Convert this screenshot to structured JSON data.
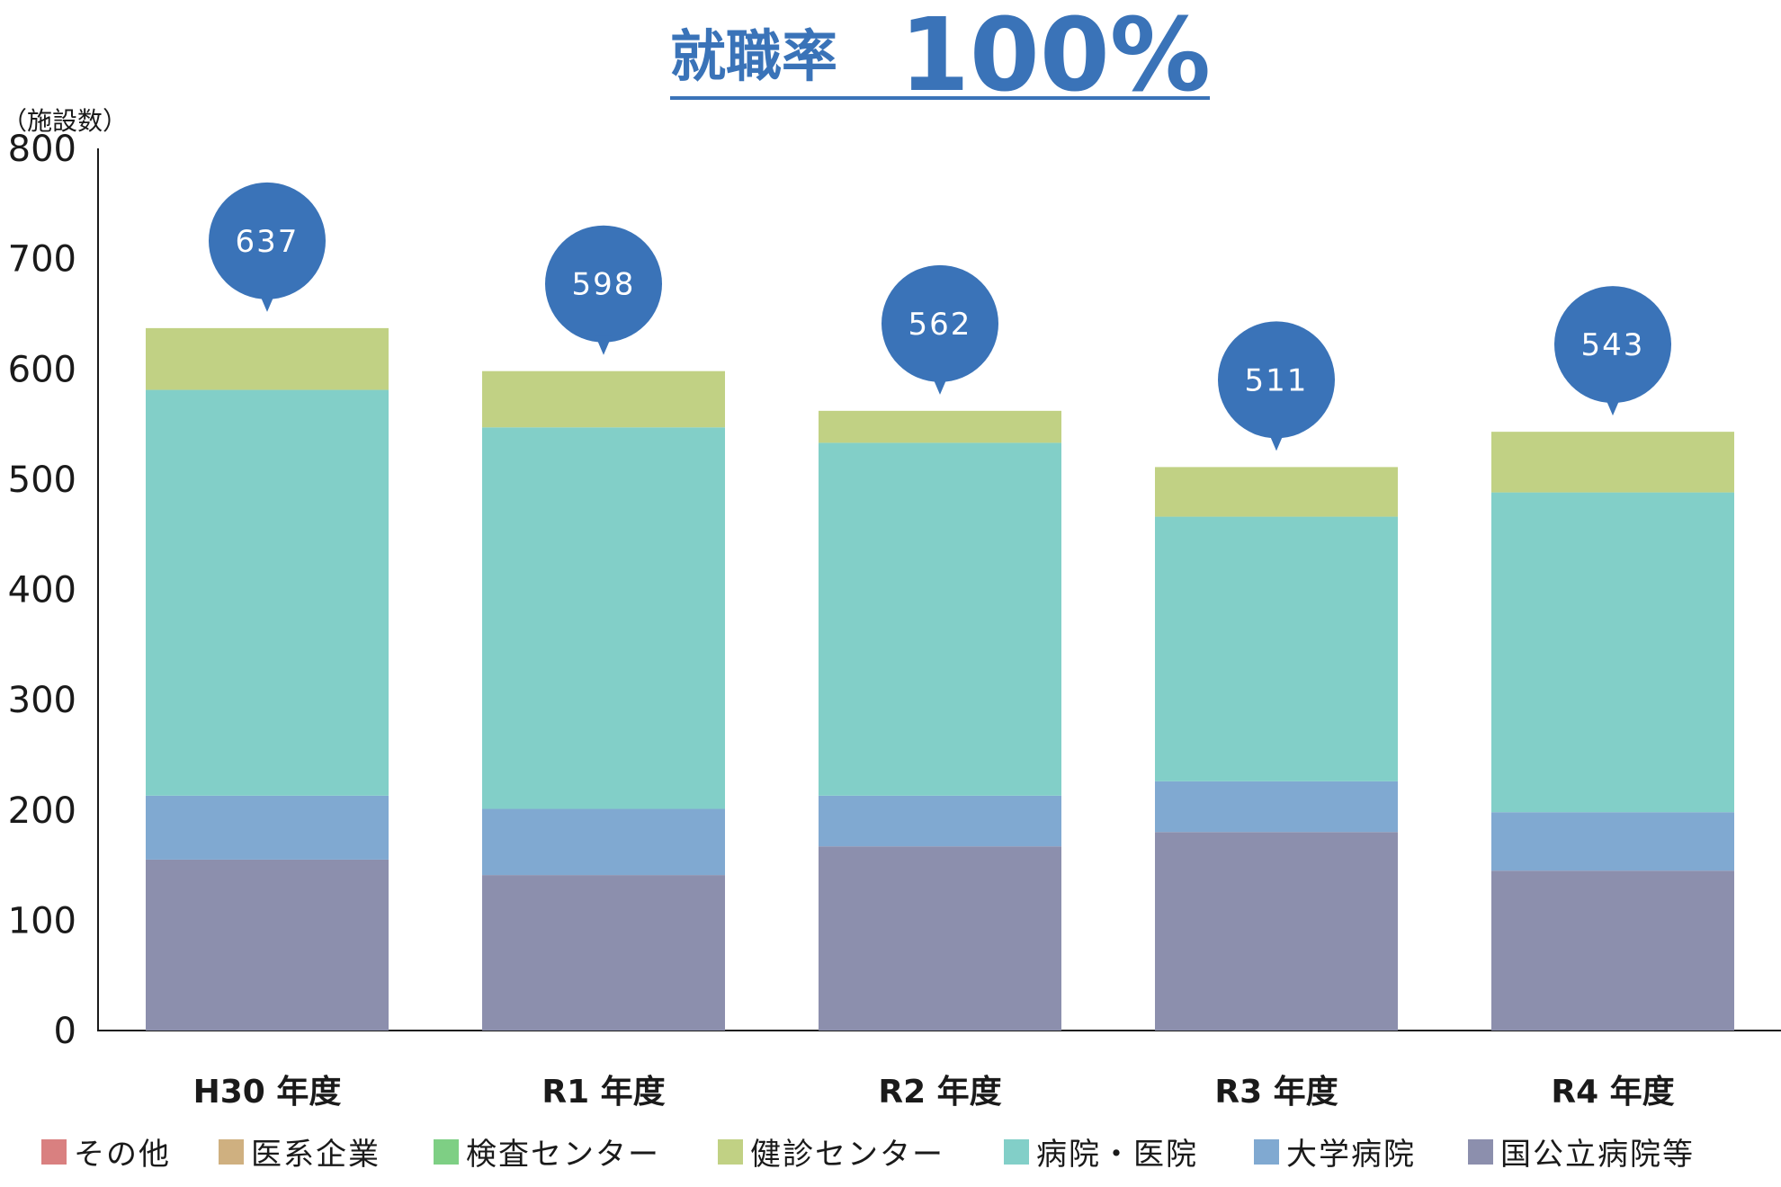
{
  "chart_data": {
    "type": "bar",
    "stacked": true,
    "title": "就職率 100%",
    "title_parts": [
      "就職率",
      "100%"
    ],
    "ylabel": "（施設数）",
    "ylim": [
      0,
      800
    ],
    "yticks": [
      0,
      100,
      200,
      300,
      400,
      500,
      600,
      700,
      800
    ],
    "categories": [
      "H30 年度",
      "R1 年度",
      "R2 年度",
      "R3 年度",
      "R4 年度"
    ],
    "totals": [
      637,
      598,
      562,
      511,
      543
    ],
    "series": [
      {
        "name": "その他",
        "color": "#d98080",
        "values": [
          0,
          0,
          0,
          0,
          0
        ]
      },
      {
        "name": "医系企業",
        "color": "#cfb080",
        "values": [
          0,
          0,
          0,
          0,
          0
        ]
      },
      {
        "name": "検査センター",
        "color": "#7ecf84",
        "values": [
          0,
          0,
          0,
          0,
          0
        ]
      },
      {
        "name": "健診センター",
        "color": "#c1d184",
        "values": [
          56,
          51,
          29,
          45,
          55
        ]
      },
      {
        "name": "病院・医院",
        "color": "#82cfc8",
        "values": [
          368,
          346,
          320,
          240,
          290
        ]
      },
      {
        "name": "大学病院",
        "color": "#80a9d1",
        "values": [
          58,
          60,
          46,
          46,
          53
        ]
      },
      {
        "name": "国公立病院等",
        "color": "#8c8fad",
        "values": [
          155,
          141,
          167,
          180,
          145
        ]
      }
    ],
    "grid": false,
    "legend_position": "bottom",
    "bubble_color": "#3a73b8"
  }
}
